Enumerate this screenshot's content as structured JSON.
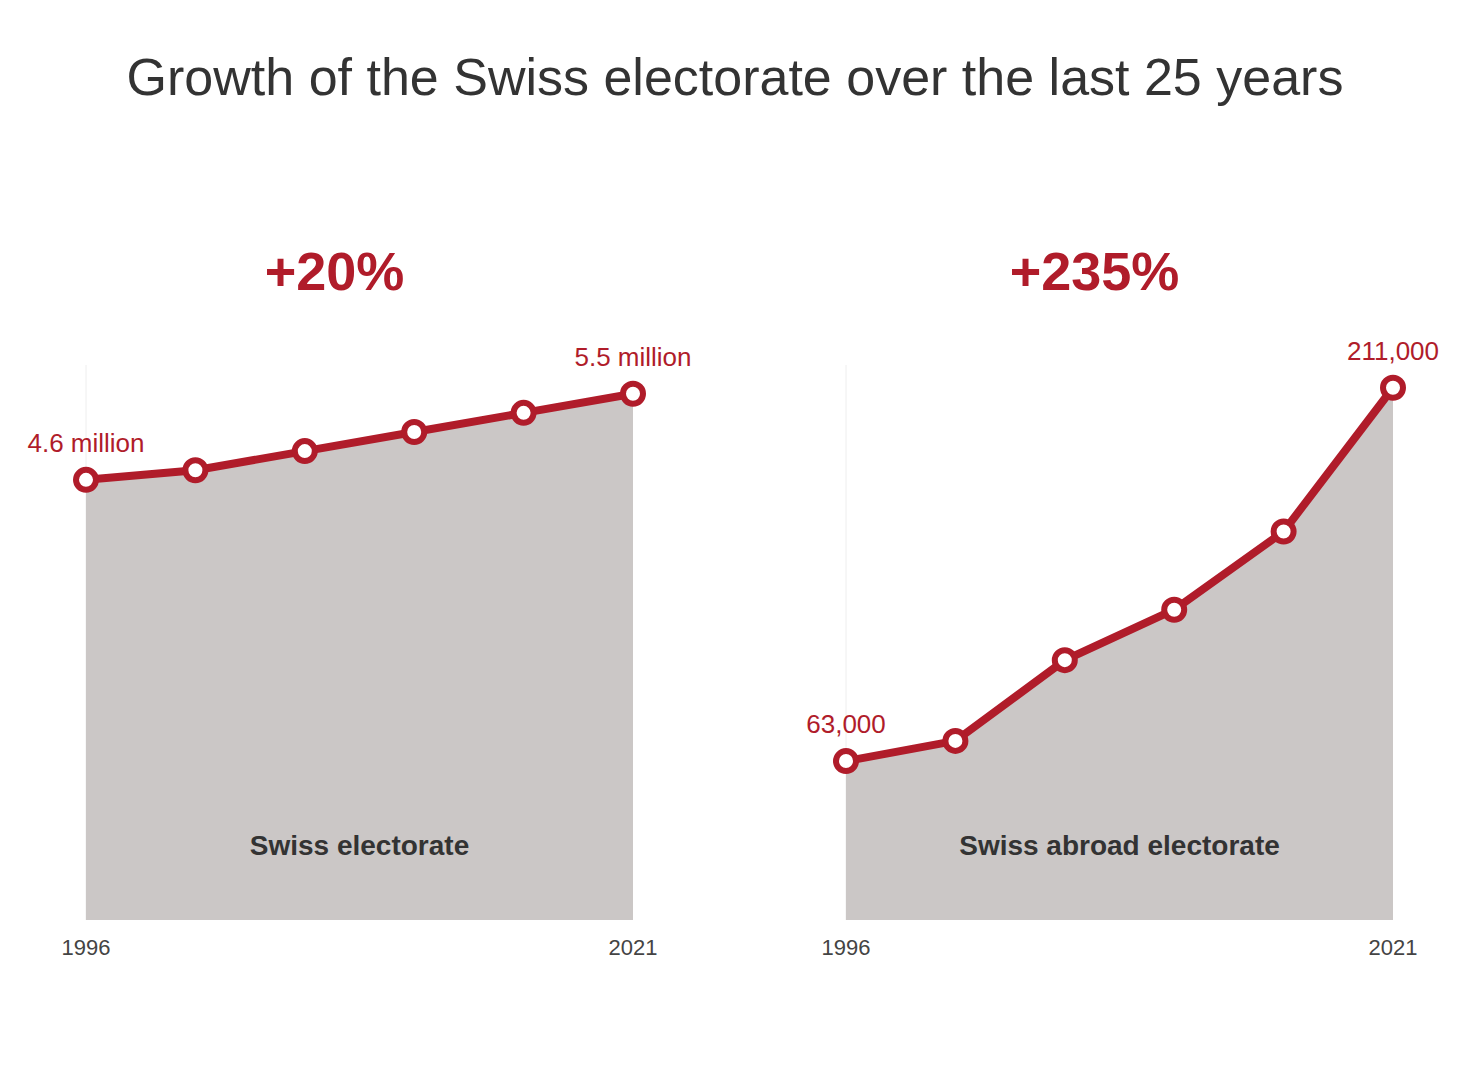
{
  "title": "Growth of the Swiss electorate over the last 25 years",
  "chart_data": [
    {
      "type": "area",
      "annotation": "+20%",
      "marker": "circle",
      "grid": false,
      "tick_labels": "x",
      "x": [
        1996,
        2001,
        2006,
        2011,
        2016,
        2021
      ],
      "xlim": [
        1996,
        2021
      ],
      "xticks": [
        1996,
        2021
      ],
      "ylim": [
        0,
        5.8
      ],
      "series": [
        {
          "name": "Swiss electorate",
          "color": "#b01c2a",
          "values": [
            4.6,
            4.7,
            4.9,
            5.1,
            5.3,
            5.5
          ],
          "value_labels": [
            "4.6 million",
            null,
            null,
            null,
            null,
            "5.5 million"
          ]
        }
      ]
    },
    {
      "type": "area",
      "annotation": "+235%",
      "marker": "circle",
      "grid": false,
      "tick_labels": "x",
      "x": [
        1996,
        2001,
        2006,
        2011,
        2016,
        2021
      ],
      "xlim": [
        1996,
        2021
      ],
      "xticks": [
        1996,
        2021
      ],
      "ylim": [
        0,
        220000
      ],
      "series": [
        {
          "name": "Swiss abroad electorate",
          "color": "#b01c2a",
          "values": [
            63000,
            71000,
            103000,
            123000,
            154000,
            211000
          ],
          "value_labels": [
            "63,000",
            null,
            null,
            null,
            null,
            "211,000"
          ]
        }
      ]
    }
  ]
}
